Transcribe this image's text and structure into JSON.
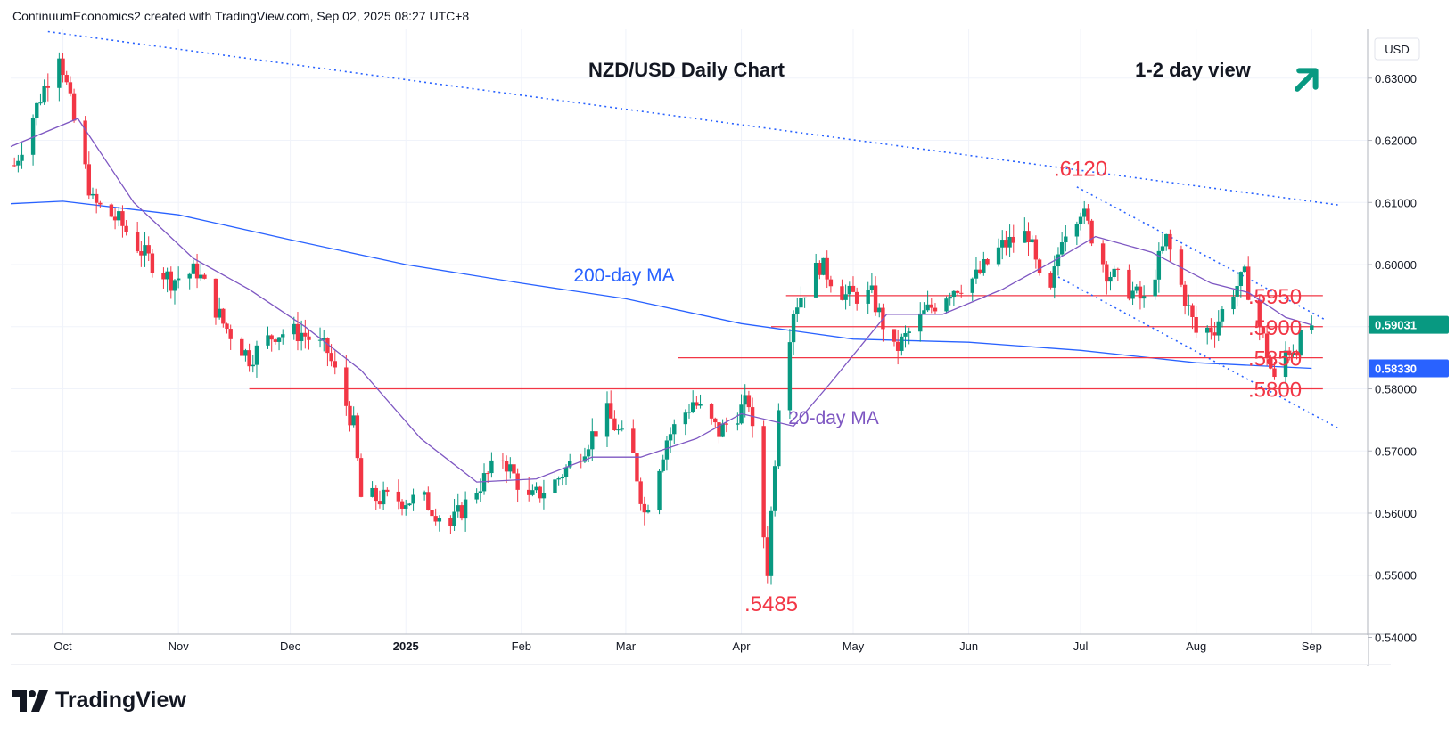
{
  "header": {
    "created_text": "ContinuumEconomics2 created with TradingView.com, Sep 02, 2025 08:27 UTC+8"
  },
  "footer": {
    "brand": "TradingView"
  },
  "colors": {
    "up": "#089981",
    "down": "#f23645",
    "ma20": "#7e57c2",
    "ma200": "#2962ff",
    "level": "#f23645",
    "trend": "#2962ff",
    "label": "#f23645",
    "arrow": "#089981"
  },
  "icons": {
    "brand_icon": "tradingview-logo",
    "bias_icon": "arrow-up-right-icon"
  },
  "chart_data": {
    "type": "candlestick",
    "title": "NZD/USD Daily Chart",
    "subtitle": "1-2 day view",
    "currency": "USD",
    "x_ticks": [
      "Oct",
      "Nov",
      "Dec",
      "2025",
      "Feb",
      "Mar",
      "Apr",
      "May",
      "Jun",
      "Jul",
      "Aug",
      "Sep"
    ],
    "y_ticks": [
      "0.63000",
      "0.62000",
      "0.61000",
      "0.60000",
      "0.59000",
      "0.58000",
      "0.57000",
      "0.56000",
      "0.55000",
      "0.54000"
    ],
    "ylim": [
      0.5405,
      0.638
    ],
    "x_range": [
      "2024-09-17",
      "2025-09-16"
    ],
    "last_price": {
      "value": 0.5903,
      "label": "0.59031"
    },
    "ma200_last": {
      "value": 0.5833,
      "label": "0.58330"
    },
    "ma_labels": {
      "ma200": "200-day MA",
      "ma20": "20-day MA"
    },
    "price_labels": [
      {
        "text": ".6120",
        "date": "2025-07-01",
        "price": 0.612
      },
      {
        "text": ".5485",
        "date": "2025-04-09",
        "price": 0.5485
      },
      {
        "text": ".5950",
        "price": 0.595
      },
      {
        "text": ".5900",
        "price": 0.59
      },
      {
        "text": ".5850",
        "price": 0.585
      },
      {
        "text": ".5800",
        "price": 0.58
      }
    ],
    "levels": [
      {
        "price": 0.595,
        "from": "2025-04-13",
        "to": "2025-09-04"
      },
      {
        "price": 0.59,
        "from": "2025-04-09",
        "to": "2025-09-04"
      },
      {
        "price": 0.585,
        "from": "2025-03-15",
        "to": "2025-09-04"
      },
      {
        "price": 0.58,
        "from": "2024-11-20",
        "to": "2025-09-04"
      }
    ],
    "trendlines": [
      {
        "from": [
          "2024-09-27",
          0.6375
        ],
        "to": [
          "2025-09-08",
          0.6096
        ]
      },
      {
        "from": [
          "2025-06-30",
          0.6125
        ],
        "to": [
          "2025-09-05",
          0.591
        ]
      },
      {
        "from": [
          "2025-06-25",
          0.598
        ],
        "to": [
          "2025-09-08",
          0.5737
        ]
      }
    ],
    "ma200": [
      [
        "2024-09-17",
        0.6098
      ],
      [
        "2024-10-01",
        0.6102
      ],
      [
        "2024-11-01",
        0.608
      ],
      [
        "2024-12-01",
        0.604
      ],
      [
        "2025-01-01",
        0.6
      ],
      [
        "2025-02-01",
        0.597
      ],
      [
        "2025-03-01",
        0.5945
      ],
      [
        "2025-04-01",
        0.5905
      ],
      [
        "2025-05-01",
        0.588
      ],
      [
        "2025-06-01",
        0.5875
      ],
      [
        "2025-07-01",
        0.5862
      ],
      [
        "2025-08-01",
        0.5842
      ],
      [
        "2025-09-01",
        0.5833
      ]
    ],
    "ma20": [
      [
        "2024-09-17",
        0.619
      ],
      [
        "2024-10-05",
        0.6235
      ],
      [
        "2024-10-20",
        0.61
      ],
      [
        "2024-11-05",
        0.601
      ],
      [
        "2024-11-20",
        0.596
      ],
      [
        "2024-12-05",
        0.59
      ],
      [
        "2024-12-20",
        0.583
      ],
      [
        "2025-01-05",
        0.572
      ],
      [
        "2025-01-20",
        0.565
      ],
      [
        "2025-02-05",
        0.5655
      ],
      [
        "2025-02-20",
        0.569
      ],
      [
        "2025-03-05",
        0.569
      ],
      [
        "2025-03-20",
        0.572
      ],
      [
        "2025-04-01",
        0.576
      ],
      [
        "2025-04-15",
        0.574
      ],
      [
        "2025-04-25",
        0.581
      ],
      [
        "2025-05-10",
        0.592
      ],
      [
        "2025-05-25",
        0.592
      ],
      [
        "2025-06-10",
        0.596
      ],
      [
        "2025-06-25",
        0.601
      ],
      [
        "2025-07-05",
        0.6045
      ],
      [
        "2025-07-20",
        0.602
      ],
      [
        "2025-08-05",
        0.597
      ],
      [
        "2025-08-15",
        0.5955
      ],
      [
        "2025-08-25",
        0.5915
      ],
      [
        "2025-09-01",
        0.5903
      ]
    ],
    "ohlc_anchors": [
      [
        "2024-09-18",
        0.616
      ],
      [
        "2024-09-25",
        0.627
      ],
      [
        "2024-09-30",
        0.6345
      ],
      [
        "2024-10-04",
        0.623
      ],
      [
        "2024-10-09",
        0.61
      ],
      [
        "2024-10-16",
        0.607
      ],
      [
        "2024-10-23",
        0.6015
      ],
      [
        "2024-10-30",
        0.5975
      ],
      [
        "2024-11-06",
        0.599
      ],
      [
        "2024-11-13",
        0.5905
      ],
      [
        "2024-11-20",
        0.585
      ],
      [
        "2024-11-27",
        0.589
      ],
      [
        "2024-12-04",
        0.589
      ],
      [
        "2024-12-11",
        0.586
      ],
      [
        "2024-12-18",
        0.574
      ],
      [
        "2024-12-20",
        0.5625
      ],
      [
        "2025-01-06",
        0.562
      ],
      [
        "2025-01-13",
        0.558
      ],
      [
        "2025-01-20",
        0.564
      ],
      [
        "2025-01-27",
        0.569
      ],
      [
        "2025-02-03",
        0.562
      ],
      [
        "2025-02-10",
        0.565
      ],
      [
        "2025-02-17",
        0.57
      ],
      [
        "2025-02-24",
        0.576
      ],
      [
        "2025-03-03",
        0.569
      ],
      [
        "2025-03-06",
        0.56
      ],
      [
        "2025-03-12",
        0.572
      ],
      [
        "2025-03-19",
        0.578
      ],
      [
        "2025-03-26",
        0.573
      ],
      [
        "2025-04-03",
        0.578
      ],
      [
        "2025-04-08",
        0.551
      ],
      [
        "2025-04-11",
        0.578
      ],
      [
        "2025-04-15",
        0.593
      ],
      [
        "2025-04-22",
        0.6
      ],
      [
        "2025-04-29",
        0.595
      ],
      [
        "2025-05-06",
        0.595
      ],
      [
        "2025-05-12",
        0.586
      ],
      [
        "2025-05-20",
        0.592
      ],
      [
        "2025-05-27",
        0.596
      ],
      [
        "2025-06-03",
        0.598
      ],
      [
        "2025-06-10",
        0.603
      ],
      [
        "2025-06-17",
        0.605
      ],
      [
        "2025-06-22",
        0.592
      ],
      [
        "2025-06-26",
        0.605
      ],
      [
        "2025-07-01",
        0.609
      ],
      [
        "2025-07-08",
        0.599
      ],
      [
        "2025-07-14",
        0.596
      ],
      [
        "2025-07-18",
        0.594
      ],
      [
        "2025-07-24",
        0.604
      ],
      [
        "2025-08-01",
        0.589
      ],
      [
        "2025-08-06",
        0.59
      ],
      [
        "2025-08-11",
        0.596
      ],
      [
        "2025-08-14",
        0.598
      ],
      [
        "2025-08-19",
        0.588
      ],
      [
        "2025-08-22",
        0.581
      ],
      [
        "2025-08-25",
        0.586
      ],
      [
        "2025-08-28",
        0.587
      ],
      [
        "2025-09-01",
        0.5903
      ]
    ]
  }
}
